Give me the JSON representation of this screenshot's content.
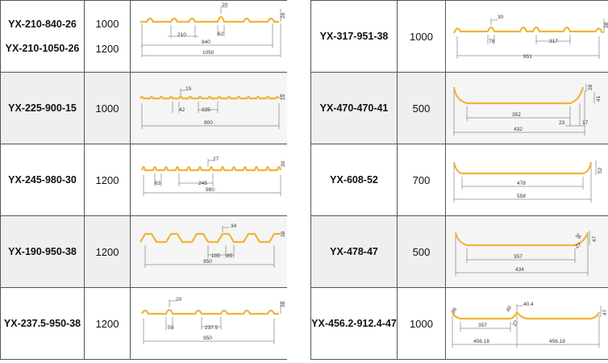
{
  "left": [
    {
      "models": [
        "YX-210-840-26",
        "YX-210-1050-26"
      ],
      "widths": [
        "1000",
        "1200"
      ],
      "dims": {
        "pitch": "210",
        "top": "20",
        "rib": "62",
        "height": "26",
        "w1": "840",
        "w2": "1050"
      }
    },
    {
      "models": [
        "YX-225-900-15"
      ],
      "widths": [
        "1000"
      ],
      "dims": {
        "top": "15",
        "rib": "42",
        "pitch": "225",
        "height": "15",
        "w1": "900"
      }
    },
    {
      "models": [
        "YX-245-980-30"
      ],
      "widths": [
        "1200"
      ],
      "dims": {
        "top": "27",
        "rib": "63",
        "pitch": "245",
        "height": "30",
        "w1": "980"
      }
    },
    {
      "models": [
        "YX-190-950-38"
      ],
      "widths": [
        "1200"
      ],
      "dims": {
        "top": "34",
        "a": "105",
        "b": "85",
        "height": "38",
        "w1": "950"
      }
    },
    {
      "models": [
        "YX-237.5-950-38"
      ],
      "widths": [
        "1200"
      ],
      "dims": {
        "top": "20",
        "rib": "50",
        "pitch": "237.5",
        "height": "38",
        "w1": "950"
      }
    }
  ],
  "right": [
    {
      "models": [
        "YX-317-951-38"
      ],
      "widths": [
        "1000"
      ],
      "dims": {
        "top": "30",
        "rib": "78",
        "pitch": "317",
        "height": "38",
        "w1": "951"
      }
    },
    {
      "models": [
        "YX-470-470-41"
      ],
      "widths": [
        "500"
      ],
      "dims": {
        "inner": "352",
        "a": "23",
        "b": "17",
        "h1": "28",
        "h2": "41",
        "w1": "432"
      }
    },
    {
      "models": [
        "YX-608-52"
      ],
      "widths": [
        "700"
      ],
      "dims": {
        "inner": "478",
        "height": "52",
        "w1": "558"
      }
    },
    {
      "models": [
        "YX-478-47"
      ],
      "widths": [
        "500"
      ],
      "dims": {
        "inner": "357",
        "a": "36",
        "b": "27",
        "height": "47",
        "w1": "434"
      }
    },
    {
      "models": [
        "YX-456.2-912.4-47"
      ],
      "widths": [
        "1000"
      ],
      "dims": {
        "a": "36",
        "inner": "357",
        "b": "40",
        "c": "40.4",
        "d": "27",
        "height": "47",
        "w1": "456.18",
        "w2": "456.18"
      }
    }
  ],
  "colors": {
    "profile": "#f0b43c",
    "dim": "#555555",
    "border": "#555555",
    "shade": "#efefef"
  }
}
